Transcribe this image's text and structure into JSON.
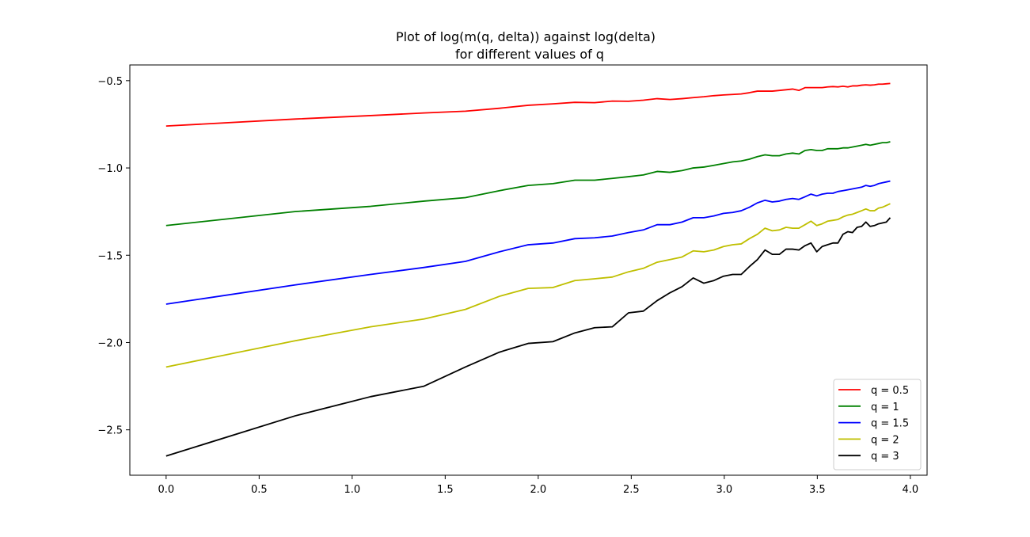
{
  "chart_data": {
    "type": "line",
    "title": [
      "Plot of log(m(q, delta)) against log(delta)",
      "for different values of q"
    ],
    "xlabel": "",
    "ylabel": "",
    "xlim": [
      -0.195,
      4.09
    ],
    "ylim": [
      -2.76,
      -0.41
    ],
    "x_ticks": [
      0.0,
      0.5,
      1.0,
      1.5,
      2.0,
      2.5,
      3.0,
      3.5,
      4.0
    ],
    "x_tick_labels": [
      "0.0",
      "0.5",
      "1.0",
      "1.5",
      "2.0",
      "2.5",
      "3.0",
      "3.5",
      "4.0"
    ],
    "y_ticks": [
      -0.5,
      -1.0,
      -1.5,
      -2.0,
      -2.5
    ],
    "y_tick_labels": [
      "−0.5",
      "−1.0",
      "−1.5",
      "−2.0",
      "−2.5"
    ],
    "grid": false,
    "legend_position": "lower-right",
    "x": [
      0.0,
      0.693,
      1.099,
      1.386,
      1.609,
      1.792,
      1.946,
      2.079,
      2.197,
      2.303,
      2.398,
      2.485,
      2.565,
      2.639,
      2.708,
      2.773,
      2.833,
      2.89,
      2.944,
      2.996,
      3.045,
      3.091,
      3.135,
      3.178,
      3.219,
      3.258,
      3.296,
      3.332,
      3.367,
      3.401,
      3.434,
      3.466,
      3.497,
      3.526,
      3.555,
      3.584,
      3.611,
      3.638,
      3.664,
      3.689,
      3.714,
      3.738,
      3.761,
      3.784,
      3.807,
      3.829,
      3.85,
      3.871,
      3.892
    ],
    "series": [
      {
        "name": "q = 0.5",
        "color": "#ff0000",
        "values": [
          -0.76,
          -0.72,
          -0.7,
          -0.685,
          -0.675,
          -0.658,
          -0.641,
          -0.633,
          -0.624,
          -0.626,
          -0.617,
          -0.618,
          -0.612,
          -0.603,
          -0.608,
          -0.603,
          -0.597,
          -0.592,
          -0.586,
          -0.582,
          -0.579,
          -0.576,
          -0.569,
          -0.56,
          -0.56,
          -0.56,
          -0.556,
          -0.552,
          -0.548,
          -0.556,
          -0.54,
          -0.54,
          -0.54,
          -0.54,
          -0.536,
          -0.534,
          -0.536,
          -0.532,
          -0.536,
          -0.53,
          -0.53,
          -0.526,
          -0.524,
          -0.526,
          -0.524,
          -0.52,
          -0.52,
          -0.518,
          -0.516
        ]
      },
      {
        "name": "q = 1",
        "color": "#008000",
        "values": [
          -1.33,
          -1.25,
          -1.22,
          -1.19,
          -1.17,
          -1.13,
          -1.1,
          -1.09,
          -1.07,
          -1.07,
          -1.06,
          -1.05,
          -1.04,
          -1.02,
          -1.025,
          -1.015,
          -1.0,
          -0.995,
          -0.985,
          -0.975,
          -0.965,
          -0.96,
          -0.95,
          -0.935,
          -0.925,
          -0.93,
          -0.93,
          -0.92,
          -0.915,
          -0.92,
          -0.9,
          -0.895,
          -0.9,
          -0.9,
          -0.89,
          -0.89,
          -0.89,
          -0.885,
          -0.885,
          -0.88,
          -0.875,
          -0.87,
          -0.865,
          -0.87,
          -0.865,
          -0.86,
          -0.855,
          -0.855,
          -0.85
        ]
      },
      {
        "name": "q = 1.5",
        "color": "#0000ff",
        "values": [
          -1.78,
          -1.67,
          -1.61,
          -1.57,
          -1.535,
          -1.48,
          -1.44,
          -1.43,
          -1.405,
          -1.4,
          -1.39,
          -1.37,
          -1.355,
          -1.325,
          -1.325,
          -1.31,
          -1.285,
          -1.285,
          -1.275,
          -1.26,
          -1.255,
          -1.245,
          -1.225,
          -1.2,
          -1.185,
          -1.195,
          -1.19,
          -1.18,
          -1.175,
          -1.18,
          -1.165,
          -1.15,
          -1.16,
          -1.15,
          -1.145,
          -1.145,
          -1.135,
          -1.13,
          -1.125,
          -1.12,
          -1.115,
          -1.11,
          -1.1,
          -1.105,
          -1.1,
          -1.09,
          -1.085,
          -1.08,
          -1.075
        ]
      },
      {
        "name": "q = 2",
        "color": "#bfbf00",
        "values": [
          -2.14,
          -1.99,
          -1.91,
          -1.865,
          -1.81,
          -1.735,
          -1.69,
          -1.685,
          -1.645,
          -1.635,
          -1.625,
          -1.595,
          -1.575,
          -1.54,
          -1.525,
          -1.51,
          -1.475,
          -1.48,
          -1.47,
          -1.45,
          -1.44,
          -1.435,
          -1.405,
          -1.38,
          -1.345,
          -1.36,
          -1.355,
          -1.34,
          -1.345,
          -1.345,
          -1.325,
          -1.305,
          -1.33,
          -1.32,
          -1.305,
          -1.3,
          -1.295,
          -1.28,
          -1.27,
          -1.265,
          -1.255,
          -1.245,
          -1.235,
          -1.245,
          -1.245,
          -1.23,
          -1.225,
          -1.215,
          -1.205
        ]
      },
      {
        "name": "q = 3",
        "color": "#000000",
        "values": [
          -2.65,
          -2.42,
          -2.31,
          -2.25,
          -2.14,
          -2.055,
          -2.005,
          -1.995,
          -1.945,
          -1.915,
          -1.91,
          -1.83,
          -1.82,
          -1.76,
          -1.715,
          -1.68,
          -1.63,
          -1.66,
          -1.645,
          -1.62,
          -1.61,
          -1.61,
          -1.565,
          -1.525,
          -1.47,
          -1.495,
          -1.495,
          -1.465,
          -1.465,
          -1.47,
          -1.445,
          -1.43,
          -1.48,
          -1.45,
          -1.44,
          -1.43,
          -1.43,
          -1.38,
          -1.365,
          -1.37,
          -1.34,
          -1.335,
          -1.31,
          -1.335,
          -1.33,
          -1.32,
          -1.315,
          -1.31,
          -1.285
        ]
      }
    ]
  }
}
